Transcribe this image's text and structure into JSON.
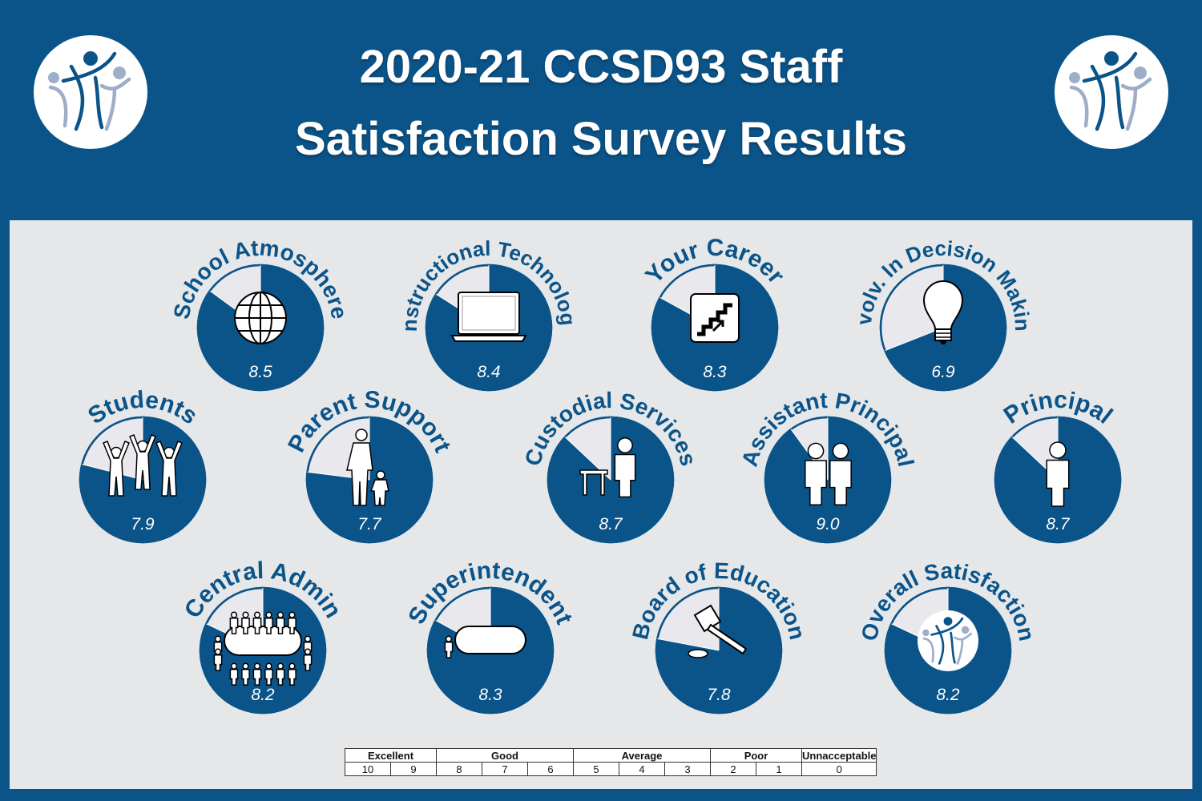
{
  "title": {
    "line1": "2020-21 CCSD93 Staff",
    "line2": "Satisfaction Survey Results"
  },
  "logo_icon": "ccsd93-people-logo-icon",
  "colors": {
    "brand_blue": "#0b5489",
    "pie_empty": "#e9e9ed",
    "panel_background": "#e6e7e9",
    "logo_light": "#9eaec9"
  },
  "chart_data": {
    "type": "pie",
    "scale_max": 10,
    "items": [
      {
        "label": "School Atmosphere",
        "value": 8.5,
        "display": "8.5",
        "icon": "globe-icon"
      },
      {
        "label": "Instructional Technology",
        "value": 8.4,
        "display": "8.4",
        "icon": "laptop-icon"
      },
      {
        "label": "Your Career",
        "value": 8.3,
        "display": "8.3",
        "icon": "stairs-up-icon"
      },
      {
        "label": "Involv. In Decision Making",
        "value": 6.9,
        "display": "6.9",
        "icon": "lightbulb-icon"
      },
      {
        "label": "Students",
        "value": 7.9,
        "display": "7.9",
        "icon": "cheering-people-icon"
      },
      {
        "label": "Parent Support",
        "value": 7.7,
        "display": "7.7",
        "icon": "parent-child-icon"
      },
      {
        "label": "Custodial Services",
        "value": 8.7,
        "display": "8.7",
        "icon": "custodian-table-icon"
      },
      {
        "label": "Assistant Principal",
        "value": 9.0,
        "display": "9.0",
        "icon": "two-persons-icon"
      },
      {
        "label": "Principal",
        "value": 8.7,
        "display": "8.7",
        "icon": "person-icon"
      },
      {
        "label": "Central Admin",
        "value": 8.2,
        "display": "8.2",
        "icon": "conference-table-icon"
      },
      {
        "label": "Superintendent",
        "value": 8.3,
        "display": "8.3",
        "icon": "desk-person-icon"
      },
      {
        "label": "Board of Education",
        "value": 7.8,
        "display": "7.8",
        "icon": "gavel-icon"
      },
      {
        "label": "Overall Satisfaction",
        "value": 8.2,
        "display": "8.2",
        "icon": "ccsd93-logo-icon"
      }
    ]
  },
  "rating_scale": {
    "categories": [
      {
        "label": "Excellent",
        "span": 2
      },
      {
        "label": "Good",
        "span": 3
      },
      {
        "label": "Average",
        "span": 3
      },
      {
        "label": "Poor",
        "span": 2
      },
      {
        "label": "Unnacceptable",
        "span": 1
      }
    ],
    "scores": [
      "10",
      "9",
      "8",
      "7",
      "6",
      "5",
      "4",
      "3",
      "2",
      "1",
      "0"
    ]
  }
}
